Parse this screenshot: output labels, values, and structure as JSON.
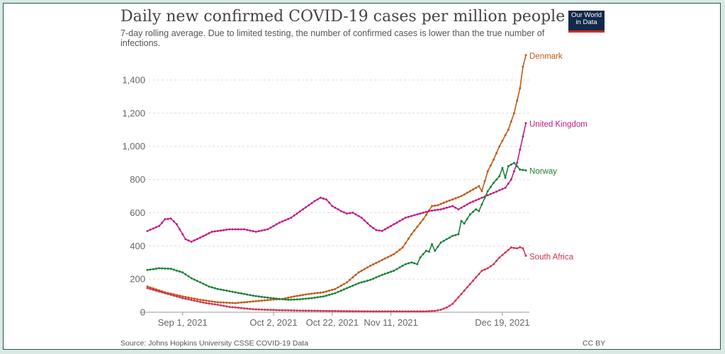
{
  "header": {
    "title": "Daily new confirmed COVID-19 cases per million people",
    "subtitle": "7-day rolling average. Due to limited testing, the number of confirmed cases is lower than the true number of infections.",
    "logo_line1": "Our World",
    "logo_line2": "in Data"
  },
  "footer": {
    "source": "Source: Johns Hopkins University CSSE COVID-19 Data",
    "license": "CC BY"
  },
  "colors": {
    "Denmark": "#c05917",
    "United Kingdom": "#c21b85",
    "Norway": "#1a8036",
    "South Africa": "#d1334f"
  },
  "chart_data": {
    "type": "line",
    "title": "Daily new confirmed COVID-19 cases per million people",
    "xlabel": "",
    "ylabel": "",
    "x_start_date": "2021-08-20",
    "x_end_date": "2021-12-26",
    "x_tick_labels": [
      "Sep 1, 2021",
      "Oct 2, 2021",
      "Oct 22, 2021",
      "Nov 11, 2021",
      "Dec 19, 2021"
    ],
    "x_tick_days": [
      12,
      43,
      63,
      83,
      121
    ],
    "y_ticks": [
      0,
      200,
      400,
      600,
      800,
      1000,
      1200,
      1400
    ],
    "y_tick_labels": [
      "0",
      "200",
      "400",
      "600",
      "800",
      "1,000",
      "1,200",
      "1,400"
    ],
    "ylim": [
      0,
      1550
    ],
    "grid": true,
    "series": [
      {
        "name": "Denmark",
        "points": [
          [
            0,
            155
          ],
          [
            6,
            120
          ],
          [
            12,
            95
          ],
          [
            18,
            75
          ],
          [
            24,
            60
          ],
          [
            30,
            55
          ],
          [
            36,
            65
          ],
          [
            42,
            75
          ],
          [
            46,
            80
          ],
          [
            50,
            95
          ],
          [
            55,
            110
          ],
          [
            60,
            120
          ],
          [
            64,
            140
          ],
          [
            68,
            180
          ],
          [
            72,
            240
          ],
          [
            76,
            280
          ],
          [
            80,
            315
          ],
          [
            84,
            350
          ],
          [
            87,
            390
          ],
          [
            90,
            470
          ],
          [
            94,
            560
          ],
          [
            97,
            640
          ],
          [
            99,
            645
          ],
          [
            101,
            660
          ],
          [
            104,
            680
          ],
          [
            107,
            700
          ],
          [
            110,
            730
          ],
          [
            113,
            760
          ],
          [
            114,
            730
          ],
          [
            116,
            850
          ],
          [
            118,
            920
          ],
          [
            120,
            1000
          ],
          [
            123,
            1100
          ],
          [
            125,
            1200
          ],
          [
            127,
            1350
          ],
          [
            128,
            1480
          ],
          [
            129,
            1550
          ]
        ]
      },
      {
        "name": "United Kingdom",
        "points": [
          [
            0,
            490
          ],
          [
            4,
            520
          ],
          [
            6,
            560
          ],
          [
            8,
            565
          ],
          [
            10,
            530
          ],
          [
            13,
            440
          ],
          [
            15,
            425
          ],
          [
            18,
            450
          ],
          [
            22,
            485
          ],
          [
            28,
            500
          ],
          [
            33,
            500
          ],
          [
            37,
            485
          ],
          [
            41,
            500
          ],
          [
            45,
            540
          ],
          [
            49,
            570
          ],
          [
            53,
            620
          ],
          [
            57,
            670
          ],
          [
            59,
            690
          ],
          [
            61,
            680
          ],
          [
            63,
            640
          ],
          [
            66,
            610
          ],
          [
            68,
            595
          ],
          [
            70,
            600
          ],
          [
            73,
            570
          ],
          [
            76,
            520
          ],
          [
            78,
            495
          ],
          [
            80,
            490
          ],
          [
            82,
            510
          ],
          [
            85,
            540
          ],
          [
            88,
            570
          ],
          [
            92,
            590
          ],
          [
            96,
            610
          ],
          [
            100,
            620
          ],
          [
            104,
            640
          ],
          [
            106,
            620
          ],
          [
            110,
            660
          ],
          [
            114,
            690
          ],
          [
            118,
            720
          ],
          [
            122,
            750
          ],
          [
            124,
            800
          ],
          [
            126,
            900
          ],
          [
            128,
            1060
          ],
          [
            129,
            1140
          ]
        ]
      },
      {
        "name": "Norway",
        "points": [
          [
            0,
            255
          ],
          [
            4,
            265
          ],
          [
            8,
            262
          ],
          [
            12,
            240
          ],
          [
            15,
            205
          ],
          [
            18,
            180
          ],
          [
            21,
            155
          ],
          [
            24,
            140
          ],
          [
            27,
            130
          ],
          [
            30,
            120
          ],
          [
            33,
            110
          ],
          [
            36,
            100
          ],
          [
            40,
            90
          ],
          [
            44,
            82
          ],
          [
            48,
            75
          ],
          [
            52,
            78
          ],
          [
            56,
            85
          ],
          [
            60,
            95
          ],
          [
            64,
            115
          ],
          [
            68,
            145
          ],
          [
            72,
            175
          ],
          [
            76,
            195
          ],
          [
            80,
            225
          ],
          [
            84,
            250
          ],
          [
            88,
            290
          ],
          [
            90,
            300
          ],
          [
            92,
            290
          ],
          [
            93,
            330
          ],
          [
            95,
            370
          ],
          [
            96,
            365
          ],
          [
            97,
            410
          ],
          [
            98,
            370
          ],
          [
            100,
            420
          ],
          [
            104,
            460
          ],
          [
            106,
            470
          ],
          [
            107,
            550
          ],
          [
            108,
            535
          ],
          [
            110,
            590
          ],
          [
            112,
            620
          ],
          [
            113,
            610
          ],
          [
            116,
            730
          ],
          [
            118,
            780
          ],
          [
            120,
            820
          ],
          [
            121,
            870
          ],
          [
            122,
            810
          ],
          [
            123,
            880
          ],
          [
            124,
            890
          ],
          [
            125,
            900
          ],
          [
            127,
            860
          ],
          [
            129,
            855
          ]
        ]
      },
      {
        "name": "South Africa",
        "points": [
          [
            0,
            145
          ],
          [
            4,
            125
          ],
          [
            8,
            105
          ],
          [
            12,
            85
          ],
          [
            16,
            70
          ],
          [
            20,
            55
          ],
          [
            24,
            45
          ],
          [
            28,
            32
          ],
          [
            32,
            25
          ],
          [
            36,
            18
          ],
          [
            40,
            15
          ],
          [
            46,
            12
          ],
          [
            52,
            10
          ],
          [
            60,
            8
          ],
          [
            70,
            6
          ],
          [
            80,
            5
          ],
          [
            88,
            5
          ],
          [
            94,
            5
          ],
          [
            98,
            8
          ],
          [
            100,
            15
          ],
          [
            102,
            28
          ],
          [
            104,
            50
          ],
          [
            106,
            90
          ],
          [
            108,
            130
          ],
          [
            110,
            170
          ],
          [
            112,
            210
          ],
          [
            114,
            250
          ],
          [
            116,
            265
          ],
          [
            118,
            290
          ],
          [
            120,
            330
          ],
          [
            122,
            360
          ],
          [
            124,
            390
          ],
          [
            126,
            385
          ],
          [
            127,
            392
          ],
          [
            128,
            385
          ],
          [
            129,
            340
          ]
        ]
      }
    ]
  }
}
